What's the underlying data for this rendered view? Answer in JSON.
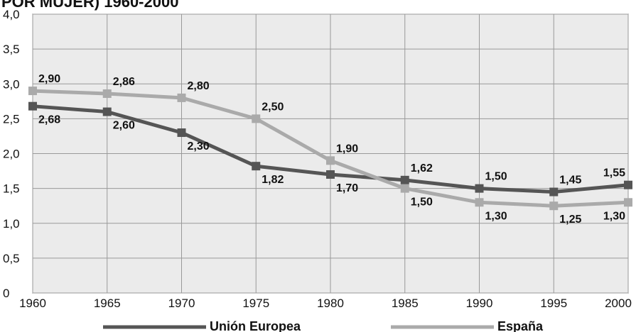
{
  "chart_data": {
    "type": "line",
    "title": "POR MUJER) 1960-2000",
    "x": [
      1960,
      1965,
      1970,
      1975,
      1980,
      1985,
      1990,
      1995,
      2000
    ],
    "xlim": [
      1960,
      2000
    ],
    "xticks": [
      1960,
      1965,
      1970,
      1975,
      1980,
      1985,
      1990,
      1995,
      2000
    ],
    "ylim": [
      0,
      4
    ],
    "yticks": [
      0,
      {
        "value": 0.5,
        "label": "0,5"
      },
      {
        "value": 1,
        "label": "1,0"
      },
      {
        "value": 1.5,
        "label": "1,5"
      },
      {
        "value": 2,
        "label": "2,0"
      },
      {
        "value": 2.5,
        "label": "2,5"
      },
      {
        "value": 3,
        "label": "3,0"
      },
      {
        "value": 3.5,
        "label": "3,5"
      },
      {
        "value": 4,
        "label": "4,0"
      }
    ],
    "grid": true,
    "series": [
      {
        "name": "Unión Europea",
        "color": "#555555",
        "values": [
          2.68,
          2.6,
          2.3,
          1.82,
          1.7,
          1.62,
          1.5,
          1.45,
          1.55
        ],
        "value_labels": [
          "2,68",
          "2,60",
          "2,30",
          "1,82",
          "1,70",
          "1,62",
          "1,50",
          "1,45",
          "1,55"
        ]
      },
      {
        "name": "España",
        "color": "#aaaaaa",
        "values": [
          2.9,
          2.86,
          2.8,
          2.5,
          1.9,
          1.5,
          1.3,
          1.25,
          1.3
        ],
        "value_labels": [
          "2,90",
          "2,86",
          "2,80",
          "2,50",
          "1,90",
          "1,50",
          "1,30",
          "1,25",
          "1,30"
        ]
      }
    ]
  }
}
